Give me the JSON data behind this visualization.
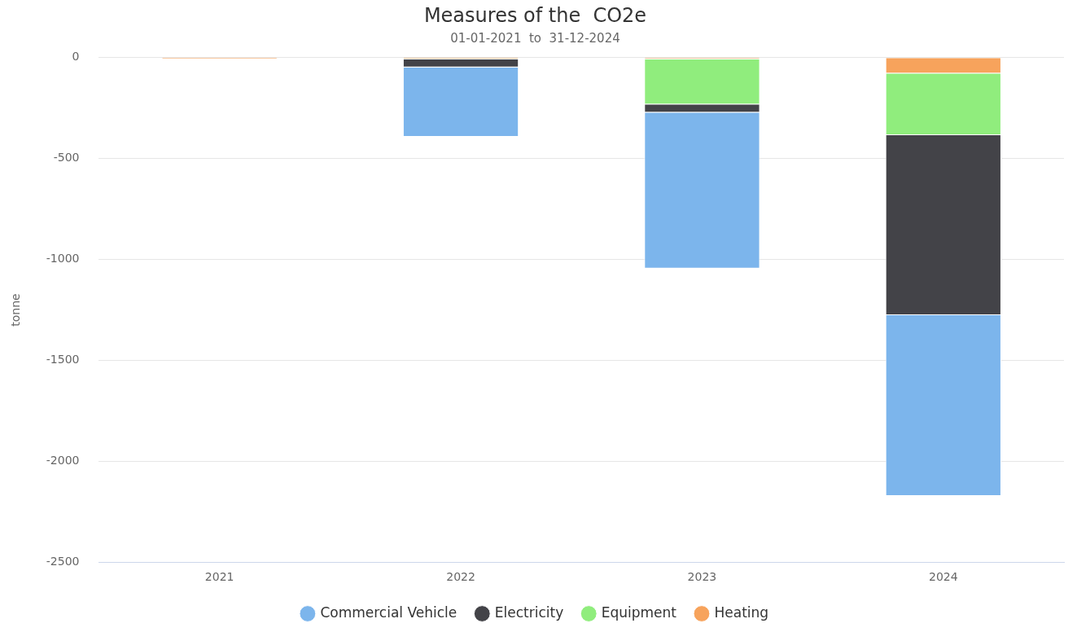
{
  "chart_data": {
    "type": "bar",
    "title": "Measures of the  CO2e",
    "subtitle": "01-01-2021  to  31-12-2024",
    "ylabel": "tonne",
    "categories": [
      "2021",
      "2022",
      "2023",
      "2024"
    ],
    "stacked": true,
    "legend": "bottom",
    "grid": "y",
    "ylim": [
      -2500,
      0
    ],
    "yticks": [
      -2500,
      -2000,
      -1500,
      -1000,
      -500,
      0
    ],
    "series": [
      {
        "name": "Heating",
        "color": "#f7a35c",
        "values": [
          -8,
          -8,
          -8,
          -78
        ]
      },
      {
        "name": "Equipment",
        "color": "#90ed7d",
        "values": [
          0,
          0,
          -224,
          -306
        ]
      },
      {
        "name": "Electricity",
        "color": "#434348",
        "values": [
          0,
          -40,
          -40,
          -892
        ]
      },
      {
        "name": "Commercial Vehicle",
        "color": "#7cb5ec",
        "values": [
          0,
          -344,
          -773,
          -896
        ]
      }
    ]
  }
}
